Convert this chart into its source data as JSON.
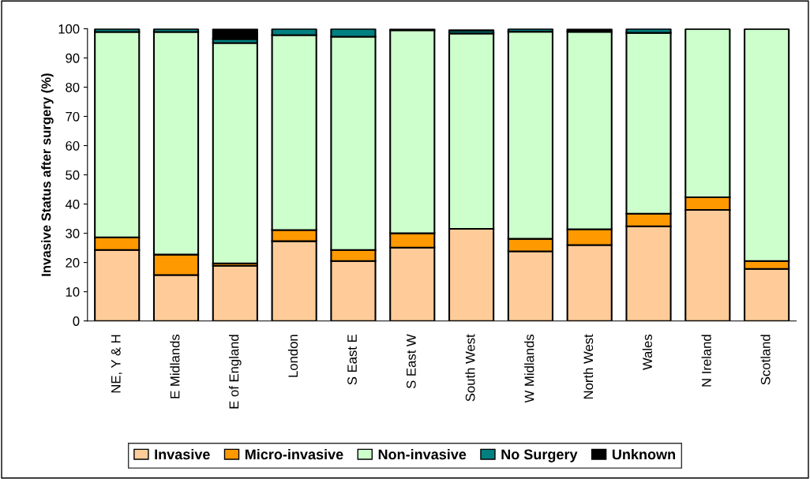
{
  "chart_data": {
    "type": "bar",
    "stacked": true,
    "ylabel": "Invasive Status after surgery (%)",
    "categories": [
      "NE, Y & H",
      "E Midlands",
      "E of England",
      "London",
      "S East E",
      "S East W",
      "South West",
      "W Midlands",
      "North West",
      "Wales",
      "N Ireland",
      "Scotland"
    ],
    "series": [
      {
        "name": "Invasive",
        "color": "#ffcc99",
        "values": [
          24.3,
          15.7,
          18.9,
          27.3,
          20.5,
          25.1,
          31.5,
          23.8,
          26.0,
          32.4,
          38.0,
          17.8
        ]
      },
      {
        "name": "Micro-invasive",
        "color": "#ff9900",
        "values": [
          4.3,
          7.0,
          0.8,
          3.8,
          3.8,
          4.9,
          null,
          4.3,
          5.4,
          4.3,
          4.3,
          2.7
        ]
      },
      {
        "name": "Non-invasive",
        "color": "#ccffcc",
        "values": [
          70.3,
          76.2,
          75.4,
          66.7,
          73.0,
          69.5,
          66.9,
          70.9,
          67.6,
          61.9,
          57.7,
          79.5
        ]
      },
      {
        "name": "No Surgery",
        "color": "#008080",
        "values": [
          1.1,
          1.1,
          1.4,
          2.2,
          2.7,
          0,
          1.0,
          1.0,
          0,
          1.4,
          0,
          0
        ]
      },
      {
        "name": "Unknown",
        "color": "#000000",
        "values": [
          0,
          0,
          3.5,
          0,
          0,
          0.5,
          0,
          0,
          1.0,
          0,
          0,
          0
        ]
      }
    ],
    "ylim": [
      0,
      100
    ],
    "yticks": [
      0,
      10,
      20,
      30,
      40,
      50,
      60,
      70,
      80,
      90,
      100
    ],
    "grid": false,
    "legend": "bottom"
  }
}
